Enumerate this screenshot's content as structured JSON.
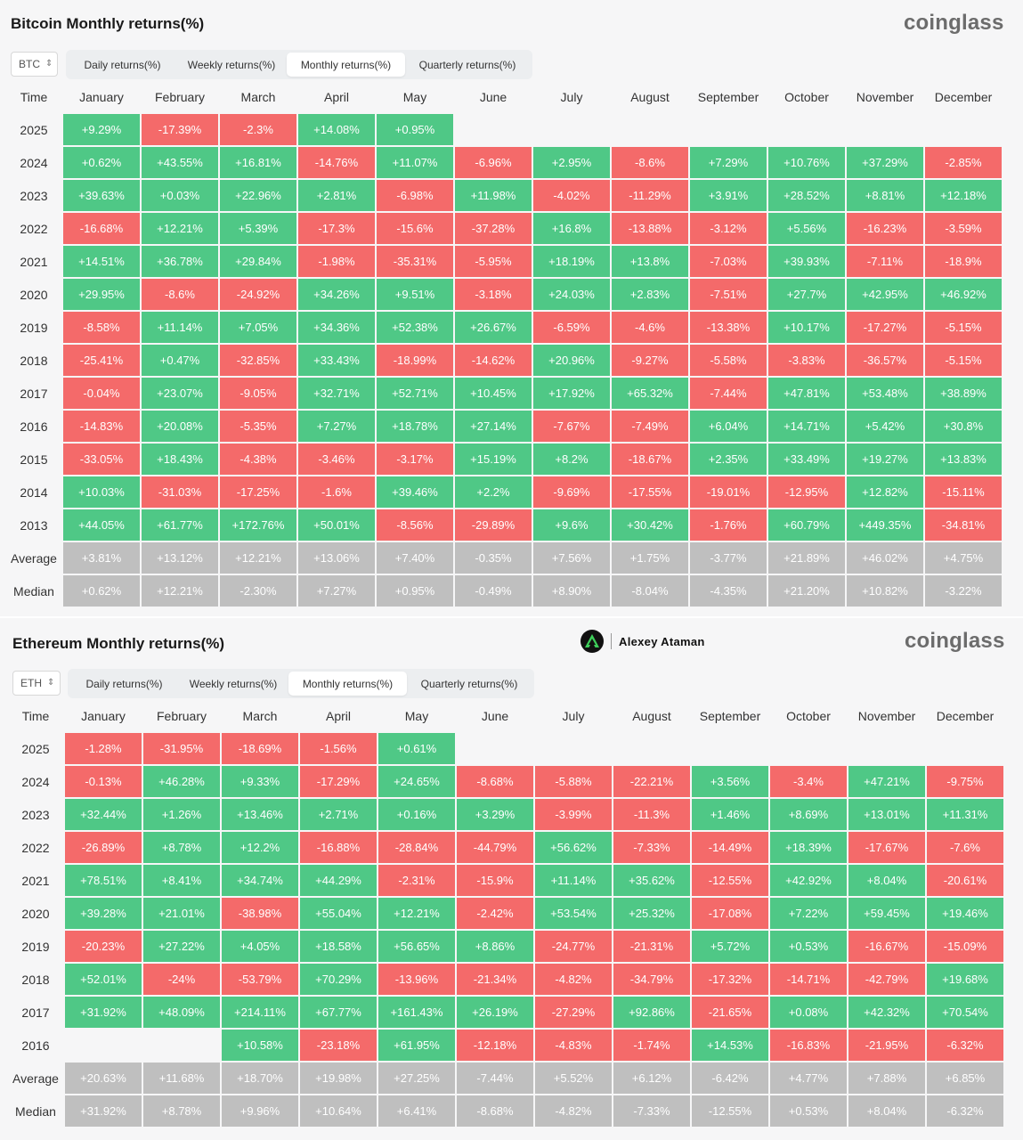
{
  "months": [
    "January",
    "February",
    "March",
    "April",
    "May",
    "June",
    "July",
    "August",
    "September",
    "October",
    "November",
    "December"
  ],
  "time_label": "Time",
  "tabs": [
    "Daily returns(%)",
    "Weekly returns(%)",
    "Monthly returns(%)",
    "Quarterly returns(%)"
  ],
  "active_tab": 2,
  "brand": "coinglass",
  "watermark": {
    "name": "Alexey Ataman"
  },
  "colors": {
    "positive": "#4fc886",
    "negative": "#f46a6a",
    "stat": "#bfbfbf"
  },
  "btc": {
    "title": "Bitcoin Monthly returns(%)",
    "asset": "BTC",
    "rows": [
      {
        "year": "2025",
        "v": [
          "+9.29%",
          "-17.39%",
          "-2.3%",
          "+14.08%",
          "+0.95%",
          "",
          "",
          "",
          "",
          "",
          "",
          ""
        ]
      },
      {
        "year": "2024",
        "v": [
          "+0.62%",
          "+43.55%",
          "+16.81%",
          "-14.76%",
          "+11.07%",
          "-6.96%",
          "+2.95%",
          "-8.6%",
          "+7.29%",
          "+10.76%",
          "+37.29%",
          "-2.85%"
        ]
      },
      {
        "year": "2023",
        "v": [
          "+39.63%",
          "+0.03%",
          "+22.96%",
          "+2.81%",
          "-6.98%",
          "+11.98%",
          "-4.02%",
          "-11.29%",
          "+3.91%",
          "+28.52%",
          "+8.81%",
          "+12.18%"
        ]
      },
      {
        "year": "2022",
        "v": [
          "-16.68%",
          "+12.21%",
          "+5.39%",
          "-17.3%",
          "-15.6%",
          "-37.28%",
          "+16.8%",
          "-13.88%",
          "-3.12%",
          "+5.56%",
          "-16.23%",
          "-3.59%"
        ]
      },
      {
        "year": "2021",
        "v": [
          "+14.51%",
          "+36.78%",
          "+29.84%",
          "-1.98%",
          "-35.31%",
          "-5.95%",
          "+18.19%",
          "+13.8%",
          "-7.03%",
          "+39.93%",
          "-7.11%",
          "-18.9%"
        ]
      },
      {
        "year": "2020",
        "v": [
          "+29.95%",
          "-8.6%",
          "-24.92%",
          "+34.26%",
          "+9.51%",
          "-3.18%",
          "+24.03%",
          "+2.83%",
          "-7.51%",
          "+27.7%",
          "+42.95%",
          "+46.92%"
        ]
      },
      {
        "year": "2019",
        "v": [
          "-8.58%",
          "+11.14%",
          "+7.05%",
          "+34.36%",
          "+52.38%",
          "+26.67%",
          "-6.59%",
          "-4.6%",
          "-13.38%",
          "+10.17%",
          "-17.27%",
          "-5.15%"
        ]
      },
      {
        "year": "2018",
        "v": [
          "-25.41%",
          "+0.47%",
          "-32.85%",
          "+33.43%",
          "-18.99%",
          "-14.62%",
          "+20.96%",
          "-9.27%",
          "-5.58%",
          "-3.83%",
          "-36.57%",
          "-5.15%"
        ]
      },
      {
        "year": "2017",
        "v": [
          "-0.04%",
          "+23.07%",
          "-9.05%",
          "+32.71%",
          "+52.71%",
          "+10.45%",
          "+17.92%",
          "+65.32%",
          "-7.44%",
          "+47.81%",
          "+53.48%",
          "+38.89%"
        ]
      },
      {
        "year": "2016",
        "v": [
          "-14.83%",
          "+20.08%",
          "-5.35%",
          "+7.27%",
          "+18.78%",
          "+27.14%",
          "-7.67%",
          "-7.49%",
          "+6.04%",
          "+14.71%",
          "+5.42%",
          "+30.8%"
        ]
      },
      {
        "year": "2015",
        "v": [
          "-33.05%",
          "+18.43%",
          "-4.38%",
          "-3.46%",
          "-3.17%",
          "+15.19%",
          "+8.2%",
          "-18.67%",
          "+2.35%",
          "+33.49%",
          "+19.27%",
          "+13.83%"
        ]
      },
      {
        "year": "2014",
        "v": [
          "+10.03%",
          "-31.03%",
          "-17.25%",
          "-1.6%",
          "+39.46%",
          "+2.2%",
          "-9.69%",
          "-17.55%",
          "-19.01%",
          "-12.95%",
          "+12.82%",
          "-15.11%"
        ]
      },
      {
        "year": "2013",
        "v": [
          "+44.05%",
          "+61.77%",
          "+172.76%",
          "+50.01%",
          "-8.56%",
          "-29.89%",
          "+9.6%",
          "+30.42%",
          "-1.76%",
          "+60.79%",
          "+449.35%",
          "-34.81%"
        ]
      }
    ],
    "average": {
      "label": "Average",
      "v": [
        "+3.81%",
        "+13.12%",
        "+12.21%",
        "+13.06%",
        "+7.40%",
        "-0.35%",
        "+7.56%",
        "+1.75%",
        "-3.77%",
        "+21.89%",
        "+46.02%",
        "+4.75%"
      ]
    },
    "median": {
      "label": "Median",
      "v": [
        "+0.62%",
        "+12.21%",
        "-2.30%",
        "+7.27%",
        "+0.95%",
        "-0.49%",
        "+8.90%",
        "-8.04%",
        "-4.35%",
        "+21.20%",
        "+10.82%",
        "-3.22%"
      ]
    }
  },
  "eth": {
    "title": "Ethereum Monthly returns(%)",
    "asset": "ETH",
    "rows": [
      {
        "year": "2025",
        "v": [
          "-1.28%",
          "-31.95%",
          "-18.69%",
          "-1.56%",
          "+0.61%",
          "",
          "",
          "",
          "",
          "",
          "",
          ""
        ]
      },
      {
        "year": "2024",
        "v": [
          "-0.13%",
          "+46.28%",
          "+9.33%",
          "-17.29%",
          "+24.65%",
          "-8.68%",
          "-5.88%",
          "-22.21%",
          "+3.56%",
          "-3.4%",
          "+47.21%",
          "-9.75%"
        ]
      },
      {
        "year": "2023",
        "v": [
          "+32.44%",
          "+1.26%",
          "+13.46%",
          "+2.71%",
          "+0.16%",
          "+3.29%",
          "-3.99%",
          "-11.3%",
          "+1.46%",
          "+8.69%",
          "+13.01%",
          "+11.31%"
        ]
      },
      {
        "year": "2022",
        "v": [
          "-26.89%",
          "+8.78%",
          "+12.2%",
          "-16.88%",
          "-28.84%",
          "-44.79%",
          "+56.62%",
          "-7.33%",
          "-14.49%",
          "+18.39%",
          "-17.67%",
          "-7.6%"
        ]
      },
      {
        "year": "2021",
        "v": [
          "+78.51%",
          "+8.41%",
          "+34.74%",
          "+44.29%",
          "-2.31%",
          "-15.9%",
          "+11.14%",
          "+35.62%",
          "-12.55%",
          "+42.92%",
          "+8.04%",
          "-20.61%"
        ]
      },
      {
        "year": "2020",
        "v": [
          "+39.28%",
          "+21.01%",
          "-38.98%",
          "+55.04%",
          "+12.21%",
          "-2.42%",
          "+53.54%",
          "+25.32%",
          "-17.08%",
          "+7.22%",
          "+59.45%",
          "+19.46%"
        ]
      },
      {
        "year": "2019",
        "v": [
          "-20.23%",
          "+27.22%",
          "+4.05%",
          "+18.58%",
          "+56.65%",
          "+8.86%",
          "-24.77%",
          "-21.31%",
          "+5.72%",
          "+0.53%",
          "-16.67%",
          "-15.09%"
        ]
      },
      {
        "year": "2018",
        "v": [
          "+52.01%",
          "-24%",
          "-53.79%",
          "+70.29%",
          "-13.96%",
          "-21.34%",
          "-4.82%",
          "-34.79%",
          "-17.32%",
          "-14.71%",
          "-42.79%",
          "+19.68%"
        ]
      },
      {
        "year": "2017",
        "v": [
          "+31.92%",
          "+48.09%",
          "+214.11%",
          "+67.77%",
          "+161.43%",
          "+26.19%",
          "-27.29%",
          "+92.86%",
          "-21.65%",
          "+0.08%",
          "+42.32%",
          "+70.54%"
        ]
      },
      {
        "year": "2016",
        "v": [
          "",
          "",
          "+10.58%",
          "-23.18%",
          "+61.95%",
          "-12.18%",
          "-4.83%",
          "-1.74%",
          "+14.53%",
          "-16.83%",
          "-21.95%",
          "-6.32%"
        ]
      }
    ],
    "average": {
      "label": "Average",
      "v": [
        "+20.63%",
        "+11.68%",
        "+18.70%",
        "+19.98%",
        "+27.25%",
        "-7.44%",
        "+5.52%",
        "+6.12%",
        "-6.42%",
        "+4.77%",
        "+7.88%",
        "+6.85%"
      ]
    },
    "median": {
      "label": "Median",
      "v": [
        "+31.92%",
        "+8.78%",
        "+9.96%",
        "+10.64%",
        "+6.41%",
        "-8.68%",
        "-4.82%",
        "-7.33%",
        "-12.55%",
        "+0.53%",
        "+8.04%",
        "-6.32%"
      ]
    }
  }
}
